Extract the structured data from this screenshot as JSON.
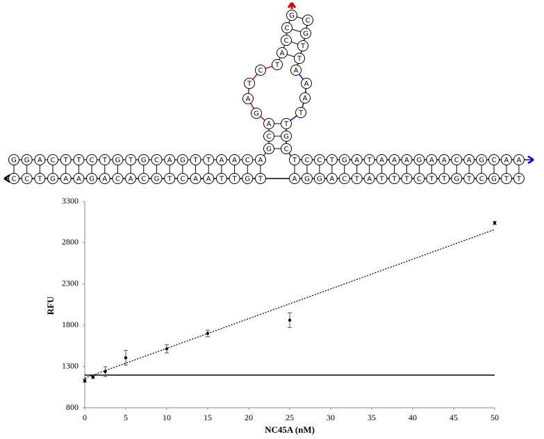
{
  "diagram": {
    "top_left": [
      "G",
      "G",
      "A",
      "C",
      "T",
      "T",
      "C",
      "T",
      "G",
      "T",
      "G",
      "C",
      "A",
      "G",
      "T",
      "T",
      "A",
      "A",
      "C",
      "A"
    ],
    "bottom_left": [
      "C",
      "C",
      "T",
      "G",
      "A",
      "A",
      "G",
      "A",
      "C",
      "A",
      "C",
      "G",
      "T",
      "C",
      "A",
      "A",
      "T",
      "T",
      "G",
      "T"
    ],
    "top_right": [
      "T",
      "C",
      "C",
      "T",
      "G",
      "A",
      "T",
      "A",
      "A",
      "A",
      "G",
      "A",
      "A",
      "C",
      "A",
      "G",
      "C",
      "A",
      "A"
    ],
    "bottom_right": [
      "A",
      "G",
      "G",
      "A",
      "C",
      "T",
      "A",
      "T",
      "T",
      "T",
      "C",
      "T",
      "T",
      "G",
      "T",
      "C",
      "G",
      "T",
      "T"
    ],
    "hairpin_left": [
      "G",
      "C",
      "A",
      "G",
      "A",
      "T",
      "C",
      "T",
      "A",
      "C",
      "C",
      "G"
    ],
    "hairpin_right": [
      "C",
      "G",
      "T",
      "T",
      "A",
      "A",
      "A",
      "T",
      "T",
      "G",
      "C"
    ]
  },
  "chart_data": {
    "type": "scatter",
    "x_label": "NC45A (nM)",
    "y_label": "RFU",
    "x": [
      0,
      1,
      2.5,
      5,
      10,
      15,
      25,
      50
    ],
    "values": [
      1128,
      1170,
      1238,
      1406,
      1515,
      1701,
      1861,
      3039
    ],
    "errors": [
      20,
      15,
      60,
      90,
      50,
      40,
      90,
      20
    ],
    "trendline": {
      "x": [
        0,
        50
      ],
      "values": [
        1160,
        2960
      ]
    },
    "threshold": 1196,
    "xlim": [
      0,
      50
    ],
    "xticks": [
      0,
      5,
      10,
      15,
      20,
      25,
      30,
      35,
      40,
      45,
      50
    ],
    "ylim": [
      800,
      3300
    ],
    "yticks": [
      800,
      1300,
      1800,
      2300,
      2800,
      3300
    ]
  }
}
